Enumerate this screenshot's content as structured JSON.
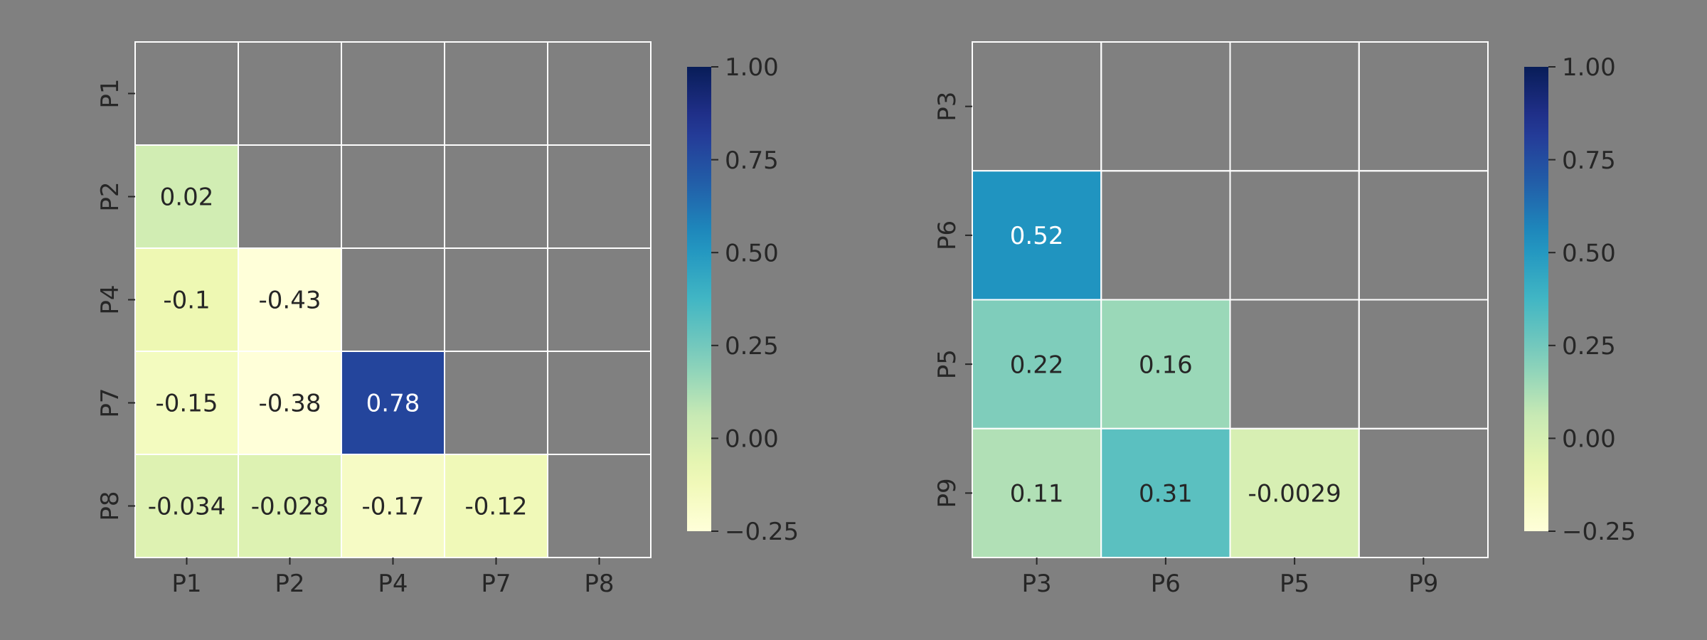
{
  "background": "#808080",
  "chart_data": [
    {
      "type": "heatmap",
      "title": "",
      "xlabel": "",
      "ylabel": "",
      "x_categories": [
        "P1",
        "P2",
        "P4",
        "P7",
        "P8"
      ],
      "y_categories": [
        "P1",
        "P2",
        "P4",
        "P7",
        "P8"
      ],
      "mask": "upper-triangle-and-diagonal",
      "values": [
        [
          null,
          null,
          null,
          null,
          null
        ],
        [
          0.02,
          null,
          null,
          null,
          null
        ],
        [
          -0.1,
          -0.43,
          null,
          null,
          null
        ],
        [
          -0.15,
          -0.38,
          0.78,
          null,
          null
        ],
        [
          -0.034,
          -0.028,
          -0.17,
          -0.12,
          null
        ]
      ],
      "annotations": [
        [
          null,
          null,
          null,
          null,
          null
        ],
        [
          "0.02",
          null,
          null,
          null,
          null
        ],
        [
          "-0.1",
          "-0.43",
          null,
          null,
          null
        ],
        [
          "-0.15",
          "-0.38",
          "0.78",
          null,
          null
        ],
        [
          "-0.034",
          "-0.028",
          "-0.17",
          "-0.12",
          null
        ]
      ],
      "colorbar": {
        "colormap": "YlGnBu",
        "vmin": -0.25,
        "vmax": 1.0,
        "ticks": [
          -0.25,
          0.0,
          0.25,
          0.5,
          0.75,
          1.0
        ],
        "tick_labels": [
          "−0.25",
          "0.00",
          "0.25",
          "0.50",
          "0.75",
          "1.00"
        ]
      },
      "grid_color": "#ffffff"
    },
    {
      "type": "heatmap",
      "title": "",
      "xlabel": "",
      "ylabel": "",
      "x_categories": [
        "P3",
        "P6",
        "P5",
        "P9"
      ],
      "y_categories": [
        "P3",
        "P6",
        "P5",
        "P9"
      ],
      "mask": "upper-triangle-and-diagonal",
      "values": [
        [
          null,
          null,
          null,
          null
        ],
        [
          0.52,
          null,
          null,
          null
        ],
        [
          0.22,
          0.16,
          null,
          null
        ],
        [
          0.11,
          0.31,
          -0.0029,
          null
        ]
      ],
      "annotations": [
        [
          null,
          null,
          null,
          null
        ],
        [
          "0.52",
          null,
          null,
          null
        ],
        [
          "0.22",
          "0.16",
          null,
          null
        ],
        [
          "0.11",
          "0.31",
          "-0.0029",
          null
        ]
      ],
      "colorbar": {
        "colormap": "YlGnBu",
        "vmin": -0.25,
        "vmax": 1.0,
        "ticks": [
          -0.25,
          0.0,
          0.25,
          0.5,
          0.75,
          1.0
        ],
        "tick_labels": [
          "−0.25",
          "0.00",
          "0.25",
          "0.50",
          "0.75",
          "1.00"
        ]
      },
      "grid_color": "#ffffff"
    }
  ]
}
